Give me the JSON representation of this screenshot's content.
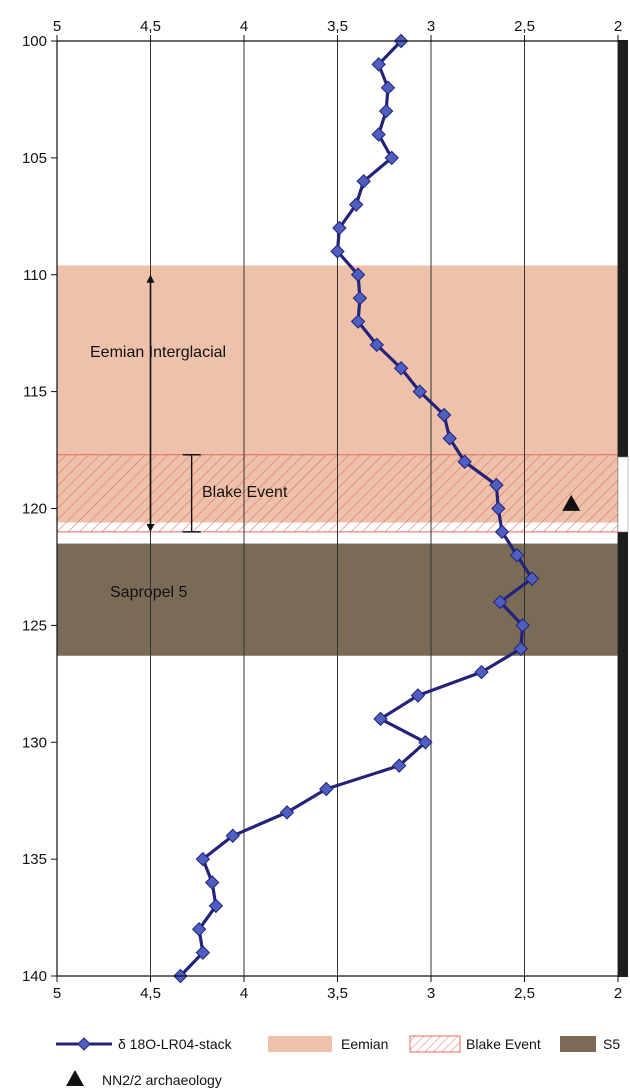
{
  "chart_data": {
    "type": "line",
    "x_axis": {
      "min": 2,
      "max": 5,
      "reversed": true,
      "ticks": [
        5,
        4.5,
        4,
        3.5,
        3,
        2.5,
        2
      ],
      "tick_labels": [
        "5",
        "4,5",
        "4",
        "3,5",
        "3",
        "2,5",
        "2"
      ],
      "position": "top and bottom"
    },
    "y_axis": {
      "min": 100,
      "max": 140,
      "inverted": true,
      "ticks": [
        100,
        105,
        110,
        115,
        120,
        125,
        130,
        135,
        140
      ],
      "tick_labels": [
        "100",
        "105",
        "110",
        "115",
        "120",
        "125",
        "130",
        "135",
        "140"
      ]
    },
    "grid": "vertical lines at x ticks",
    "series": [
      {
        "name": "δ 18O-LR04-stack",
        "color": "#23237a",
        "marker_color": "#4f5fbf",
        "marker": "diamond",
        "points": [
          [
            3.16,
            100
          ],
          [
            3.28,
            101
          ],
          [
            3.23,
            102
          ],
          [
            3.24,
            103
          ],
          [
            3.28,
            104
          ],
          [
            3.21,
            105
          ],
          [
            3.36,
            106
          ],
          [
            3.4,
            107
          ],
          [
            3.49,
            108
          ],
          [
            3.5,
            109
          ],
          [
            3.39,
            110
          ],
          [
            3.38,
            111
          ],
          [
            3.39,
            112
          ],
          [
            3.29,
            113
          ],
          [
            3.16,
            114
          ],
          [
            3.06,
            115
          ],
          [
            2.93,
            116
          ],
          [
            2.9,
            117
          ],
          [
            2.82,
            118
          ],
          [
            2.65,
            119
          ],
          [
            2.64,
            120
          ],
          [
            2.62,
            121
          ],
          [
            2.54,
            122
          ],
          [
            2.46,
            123
          ],
          [
            2.63,
            124
          ],
          [
            2.51,
            125
          ],
          [
            2.52,
            126
          ],
          [
            2.73,
            127
          ],
          [
            3.07,
            128
          ],
          [
            3.27,
            129
          ],
          [
            3.03,
            130
          ],
          [
            3.17,
            131
          ],
          [
            3.56,
            132
          ],
          [
            3.77,
            133
          ],
          [
            4.06,
            134
          ],
          [
            4.22,
            135
          ],
          [
            4.17,
            136
          ],
          [
            4.15,
            137
          ],
          [
            4.24,
            138
          ],
          [
            4.22,
            139
          ],
          [
            4.34,
            140
          ]
        ]
      }
    ],
    "bands": [
      {
        "name": "Eemian",
        "from": 109.6,
        "to": 120.6,
        "color": "#eec2aa",
        "pattern": "solid"
      },
      {
        "name": "Blake Event",
        "from": 117.7,
        "to": 121.0,
        "color": "#e4685c",
        "pattern": "hatch"
      },
      {
        "name": "S5",
        "from": 121.5,
        "to": 126.3,
        "color": "#7a6b56",
        "pattern": "solid"
      }
    ],
    "annotations": {
      "eemian_label": "Eemian Interglacial",
      "blake_label": "Blake Event",
      "sapropel_label": "Sapropel 5",
      "eemian_arrow": {
        "x": 4.5,
        "from": 110,
        "to": 121
      },
      "blake_bar": {
        "x": 4.28,
        "from": 117.7,
        "to": 121.0
      },
      "archaeology_marker": {
        "x": 2.25,
        "y": 119.8
      }
    },
    "right_bar": {
      "color": "#1e1e1e",
      "gap_from": 117.8,
      "gap_to": 121.0
    },
    "legend": {
      "placement": "bottom",
      "items": [
        {
          "label": "δ 18O-LR04-stack",
          "kind": "line"
        },
        {
          "label": "Eemian",
          "kind": "fill"
        },
        {
          "label": "Blake Event",
          "kind": "hatch"
        },
        {
          "label": "S5",
          "kind": "fill"
        },
        {
          "label": "NN2/2 archaeology",
          "kind": "triangle"
        }
      ]
    }
  }
}
